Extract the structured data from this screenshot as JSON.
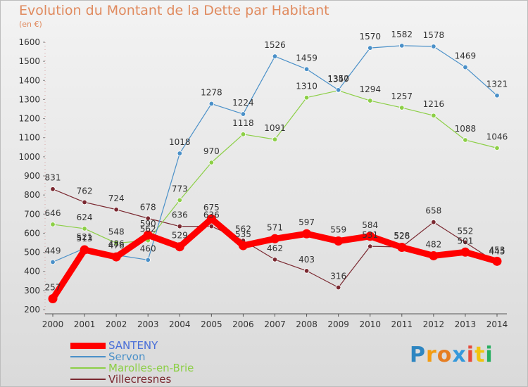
{
  "chart_data": {
    "type": "line",
    "title": "Evolution du Montant de la Dette par Habitant",
    "subtitle": "(en €)",
    "categories": [
      "2000",
      "2001",
      "2002",
      "2003",
      "2004",
      "2005",
      "2006",
      "2007",
      "2008",
      "2009",
      "2010",
      "2011",
      "2012",
      "2013",
      "2014"
    ],
    "ylim": [
      200,
      1600
    ],
    "yticks": [
      200,
      300,
      400,
      500,
      600,
      700,
      800,
      900,
      1000,
      1100,
      1200,
      1300,
      1400,
      1500,
      1600
    ],
    "grid": false,
    "legend_position": "bottom-left",
    "series": [
      {
        "name": "SANTENY",
        "color": "#ff0000",
        "values": [
          257,
          513,
          476,
          590,
          529,
          675,
          535,
          571,
          597,
          559,
          584,
          526,
          482,
          501,
          453
        ]
      },
      {
        "name": "Servon",
        "color": "#4a90c8",
        "values": [
          449,
          521,
          486,
          460,
          1018,
          1278,
          1224,
          1526,
          1459,
          1350,
          1570,
          1582,
          1578,
          1469,
          1321
        ]
      },
      {
        "name": "Marolles-en-Brie",
        "color": "#8ccf46",
        "values": [
          646,
          624,
          548,
          562,
          773,
          970,
          1118,
          1091,
          1310,
          1347,
          1294,
          1257,
          1216,
          1088,
          1046
        ]
      },
      {
        "name": "Villecresnes",
        "color": "#7a2830",
        "values": [
          831,
          762,
          724,
          678,
          636,
          636,
          562,
          462,
          403,
          316,
          531,
          528,
          658,
          552,
          445
        ]
      }
    ]
  },
  "logo": {
    "letters": [
      "P",
      "r",
      "o",
      "x",
      "i",
      "t",
      "i"
    ],
    "colors": [
      "#2e86c1",
      "#f39c12",
      "#e67e22",
      "#3498db",
      "#e74c3c",
      "#f1c40f",
      "#27ae60"
    ]
  }
}
